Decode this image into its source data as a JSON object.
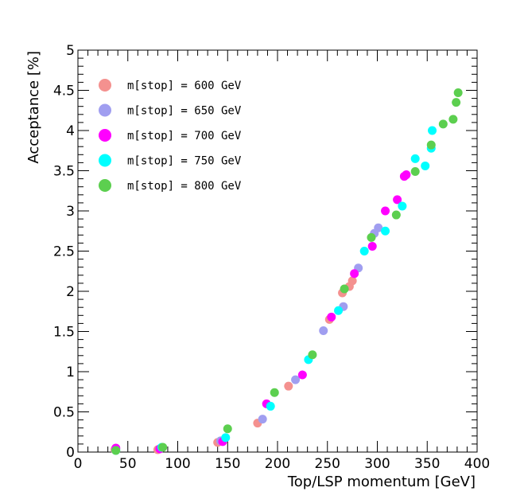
{
  "chart_data": {
    "type": "scatter",
    "title": "",
    "xlabel": "Top/LSP momentum [GeV]",
    "ylabel": "Acceptance [%]",
    "xlim": [
      0,
      400
    ],
    "ylim": [
      0,
      5
    ],
    "xticks": [
      0,
      50,
      100,
      150,
      200,
      250,
      300,
      350,
      400
    ],
    "yticks": [
      0,
      0.5,
      1,
      1.5,
      2,
      2.5,
      3,
      3.5,
      4,
      4.5,
      5
    ],
    "xtick_labels": [
      "0",
      "50",
      "100",
      "150",
      "200",
      "250",
      "300",
      "350",
      "400"
    ],
    "ytick_labels": [
      "0",
      "0.5",
      "1",
      "1.5",
      "2",
      "2.5",
      "3",
      "3.5",
      "4",
      "4.5",
      "5"
    ],
    "grid": false,
    "legend_position": "top-left",
    "series": [
      {
        "name": "m[stop] = 600 GeV",
        "color": "#f4918f",
        "points": [
          [
            37,
            0.03
          ],
          [
            80,
            0.03
          ],
          [
            140,
            0.12
          ],
          [
            180,
            0.36
          ],
          [
            211,
            0.82
          ],
          [
            252,
            1.65
          ],
          [
            265,
            1.98
          ],
          [
            272,
            2.06
          ],
          [
            275,
            2.13
          ]
        ]
      },
      {
        "name": "m[stop] = 650 GeV",
        "color": "#a09ef0",
        "points": [
          [
            38,
            0.04
          ],
          [
            82,
            0.04
          ],
          [
            143,
            0.14
          ],
          [
            185,
            0.41
          ],
          [
            218,
            0.9
          ],
          [
            246,
            1.51
          ],
          [
            266,
            1.81
          ],
          [
            281,
            2.29
          ],
          [
            297,
            2.72
          ],
          [
            301,
            2.79
          ]
        ]
      },
      {
        "name": "m[stop] = 700 GeV",
        "color": "#ff00ff",
        "points": [
          [
            38,
            0.05
          ],
          [
            82,
            0.04
          ],
          [
            145,
            0.13
          ],
          [
            189,
            0.6
          ],
          [
            225,
            0.96
          ],
          [
            254,
            1.68
          ],
          [
            277,
            2.22
          ],
          [
            295,
            2.56
          ],
          [
            308,
            3.0
          ],
          [
            320,
            3.14
          ],
          [
            327,
            3.43
          ],
          [
            329,
            3.45
          ]
        ]
      },
      {
        "name": "m[stop] = 750 GeV",
        "color": "#00ffff",
        "points": [
          [
            38,
            0.02
          ],
          [
            84,
            0.06
          ],
          [
            148,
            0.18
          ],
          [
            193,
            0.57
          ],
          [
            231,
            1.15
          ],
          [
            261,
            1.76
          ],
          [
            287,
            2.5
          ],
          [
            308,
            2.75
          ],
          [
            325,
            3.06
          ],
          [
            338,
            3.65
          ],
          [
            348,
            3.56
          ],
          [
            355,
            4.0
          ],
          [
            354,
            3.78
          ]
        ]
      },
      {
        "name": "m[stop] = 800 GeV",
        "color": "#5ccf4f",
        "points": [
          [
            38,
            0.02
          ],
          [
            85,
            0.06
          ],
          [
            150,
            0.29
          ],
          [
            197,
            0.74
          ],
          [
            235,
            1.21
          ],
          [
            267,
            2.03
          ],
          [
            294,
            2.67
          ],
          [
            319,
            2.95
          ],
          [
            338,
            3.49
          ],
          [
            354,
            3.82
          ],
          [
            366,
            4.08
          ],
          [
            376,
            4.14
          ],
          [
            379,
            4.35
          ],
          [
            381,
            4.47
          ]
        ]
      }
    ]
  }
}
